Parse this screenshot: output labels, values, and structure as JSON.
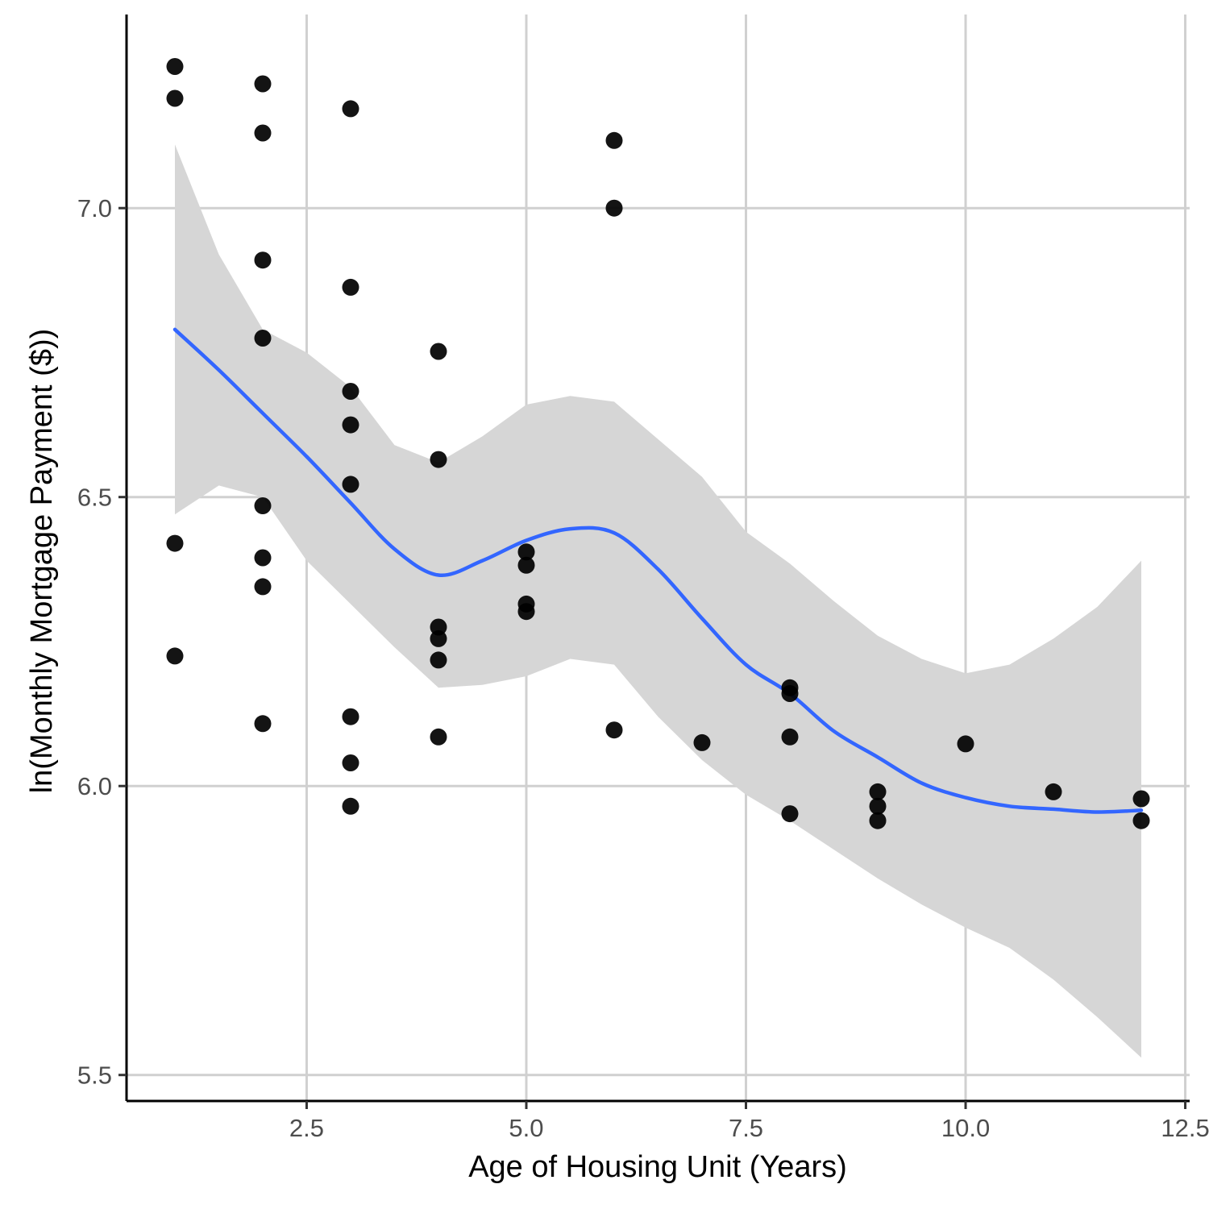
{
  "chart_data": {
    "type": "scatter",
    "title": "",
    "xlabel": "Age of Housing Unit (Years)",
    "ylabel": "ln(Monthly Mortgage Payment ($))",
    "xlim": [
      0.45,
      12.55
    ],
    "ylim": [
      5.455,
      7.335
    ],
    "x_ticks": [
      2.5,
      5.0,
      7.5,
      10.0,
      12.5
    ],
    "x_tick_labels": [
      "2.5",
      "5.0",
      "7.5",
      "10.0",
      "12.5"
    ],
    "y_ticks": [
      5.5,
      6.0,
      6.5,
      7.0
    ],
    "y_tick_labels": [
      "5.5",
      "6.0",
      "6.5",
      "7.0"
    ],
    "grid": true,
    "legend": "none",
    "colors": {
      "points": "#000000",
      "smooth_line": "#3366ff",
      "confidence_band": "#d6d6d6",
      "grid": "#d0d0d0"
    },
    "points": [
      {
        "x": 1,
        "y": 7.245
      },
      {
        "x": 1,
        "y": 7.19
      },
      {
        "x": 1,
        "y": 6.42
      },
      {
        "x": 1,
        "y": 6.225
      },
      {
        "x": 2,
        "y": 7.215
      },
      {
        "x": 2,
        "y": 7.13
      },
      {
        "x": 2,
        "y": 6.91
      },
      {
        "x": 2,
        "y": 6.775
      },
      {
        "x": 2,
        "y": 6.485
      },
      {
        "x": 2,
        "y": 6.395
      },
      {
        "x": 2,
        "y": 6.345
      },
      {
        "x": 2,
        "y": 6.108
      },
      {
        "x": 3,
        "y": 7.172
      },
      {
        "x": 3,
        "y": 6.863
      },
      {
        "x": 3,
        "y": 6.683
      },
      {
        "x": 3,
        "y": 6.625
      },
      {
        "x": 3,
        "y": 6.522
      },
      {
        "x": 3,
        "y": 6.12
      },
      {
        "x": 3,
        "y": 6.04
      },
      {
        "x": 3,
        "y": 5.965
      },
      {
        "x": 4,
        "y": 6.752
      },
      {
        "x": 4,
        "y": 6.565
      },
      {
        "x": 4,
        "y": 6.275
      },
      {
        "x": 4,
        "y": 6.255
      },
      {
        "x": 4,
        "y": 6.218
      },
      {
        "x": 4,
        "y": 6.085
      },
      {
        "x": 5,
        "y": 6.405
      },
      {
        "x": 5,
        "y": 6.382
      },
      {
        "x": 5,
        "y": 6.315
      },
      {
        "x": 5,
        "y": 6.302
      },
      {
        "x": 6,
        "y": 7.117
      },
      {
        "x": 6,
        "y": 7.0
      },
      {
        "x": 6,
        "y": 6.097
      },
      {
        "x": 7,
        "y": 6.075
      },
      {
        "x": 8,
        "y": 6.17
      },
      {
        "x": 8,
        "y": 6.16
      },
      {
        "x": 8,
        "y": 6.085
      },
      {
        "x": 8,
        "y": 5.952
      },
      {
        "x": 9,
        "y": 5.99
      },
      {
        "x": 9,
        "y": 5.965
      },
      {
        "x": 9,
        "y": 5.94
      },
      {
        "x": 10,
        "y": 6.073
      },
      {
        "x": 11,
        "y": 5.99
      },
      {
        "x": 12,
        "y": 5.978
      },
      {
        "x": 12,
        "y": 5.94
      }
    ],
    "smooth": {
      "x": [
        1,
        1.5,
        2,
        2.5,
        3,
        3.5,
        4,
        4.5,
        5,
        5.5,
        6,
        6.5,
        7,
        7.5,
        8,
        8.5,
        9,
        9.5,
        10,
        10.5,
        11,
        11.5,
        12
      ],
      "y": [
        6.79,
        6.72,
        6.645,
        6.57,
        6.49,
        6.41,
        6.365,
        6.39,
        6.425,
        6.445,
        6.438,
        6.375,
        6.29,
        6.21,
        6.16,
        6.095,
        6.05,
        6.005,
        5.98,
        5.965,
        5.96,
        5.955,
        5.958
      ],
      "lower": [
        6.47,
        6.52,
        6.5,
        6.39,
        6.315,
        6.24,
        6.17,
        6.175,
        6.19,
        6.22,
        6.21,
        6.12,
        6.045,
        5.985,
        5.94,
        5.89,
        5.84,
        5.795,
        5.755,
        5.72,
        5.665,
        5.6,
        5.53
      ],
      "upper": [
        7.11,
        6.92,
        6.79,
        6.75,
        6.69,
        6.59,
        6.56,
        6.605,
        6.66,
        6.675,
        6.665,
        6.6,
        6.535,
        6.44,
        6.385,
        6.32,
        6.26,
        6.22,
        6.195,
        6.21,
        6.255,
        6.31,
        6.39
      ]
    }
  }
}
